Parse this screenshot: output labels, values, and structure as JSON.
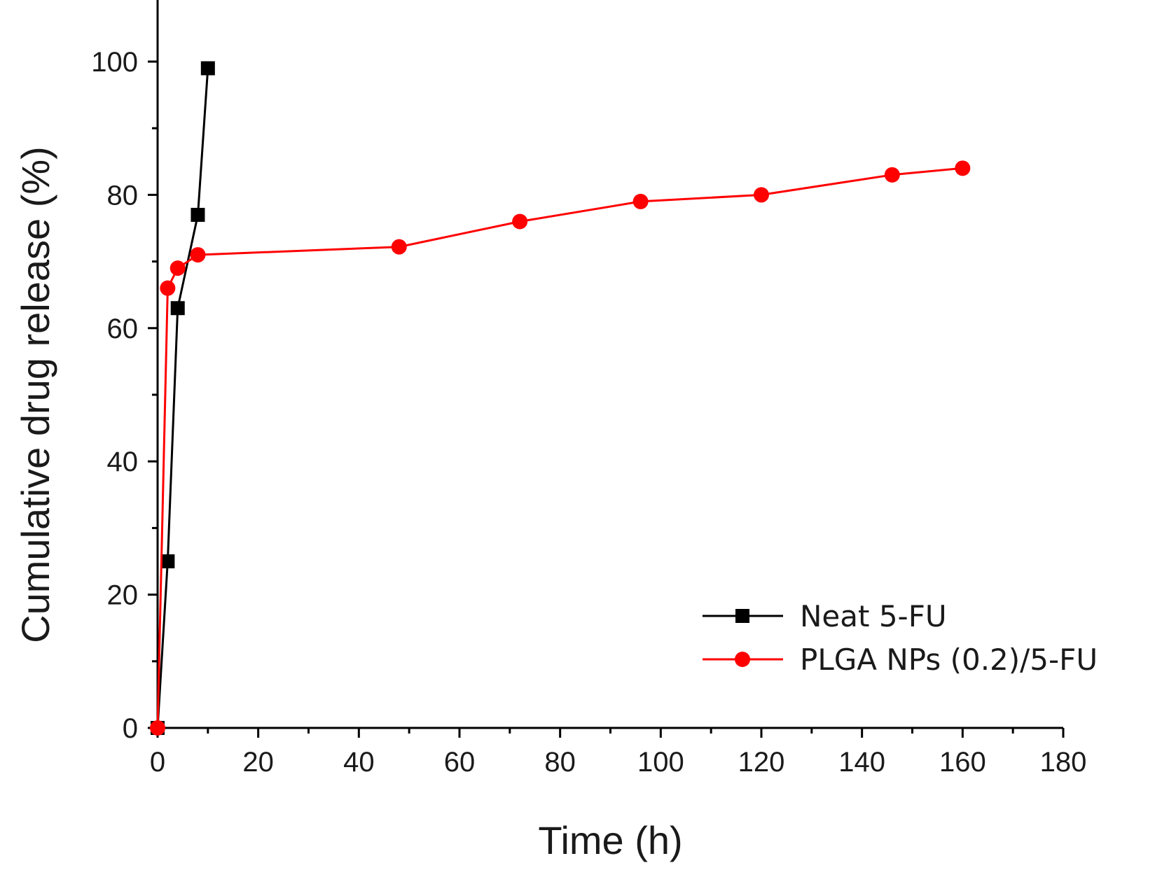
{
  "chart_data": {
    "type": "line",
    "title": "",
    "xlabel": "Time (h)",
    "ylabel": "Cumulative drug release (%)",
    "xlim": [
      0,
      180
    ],
    "ylim": [
      0,
      110
    ],
    "xticks": [
      0,
      20,
      40,
      60,
      80,
      100,
      120,
      140,
      160,
      180
    ],
    "yticks": [
      0,
      20,
      40,
      60,
      80,
      100
    ],
    "grid": false,
    "legend_position": "bottom-right",
    "series": [
      {
        "name": "Neat 5-FU",
        "color": "#000000",
        "marker": "square",
        "x": [
          0,
          2,
          4,
          8,
          10
        ],
        "y": [
          0,
          25,
          63,
          77,
          99
        ]
      },
      {
        "name": "PLGA NPs (0.2)/5-FU",
        "color": "#ff0000",
        "marker": "circle",
        "x": [
          0,
          2,
          4,
          8,
          48,
          72,
          96,
          120,
          146,
          160
        ],
        "y": [
          0,
          66,
          69,
          71,
          72.2,
          76,
          79,
          80,
          83,
          84
        ]
      }
    ]
  }
}
